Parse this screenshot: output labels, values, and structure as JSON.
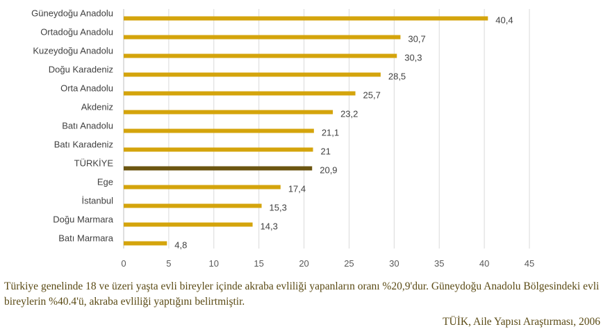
{
  "chart_data": {
    "type": "bar",
    "orientation": "horizontal",
    "categories": [
      "Güneydoğu Anadolu",
      "Ortadoğu Anadolu",
      "Kuzeydoğu Anadolu",
      "Doğu Karadeniz",
      "Orta Anadolu",
      "Akdeniz",
      "Batı Anadolu",
      "Batı Karadeniz",
      "TÜRKİYE",
      "Ege",
      "İstanbul",
      "Doğu Marmara",
      "Batı Marmara"
    ],
    "values": [
      40.4,
      30.7,
      30.3,
      28.5,
      25.7,
      23.2,
      21.1,
      21,
      20.9,
      17.4,
      15.3,
      14.3,
      4.8
    ],
    "value_labels": [
      "40,4",
      "30,7",
      "30,3",
      "28,5",
      "25,7",
      "23,2",
      "21,1",
      "21",
      "20,9",
      "17,4",
      "15,3",
      "14,3",
      "4,8"
    ],
    "highlight_category": "TÜRKİYE",
    "xlim": [
      0,
      45
    ],
    "xticks": [
      0,
      5,
      10,
      15,
      20,
      25,
      30,
      35,
      40,
      45
    ],
    "grid": "vertical",
    "colors": {
      "bar": "#D4A40C",
      "highlight": "#6B5510",
      "grid": "#D9D9D9"
    }
  },
  "caption": "Türkiye genelinde 18 ve üzeri yaşta evli bireyler içinde akraba evliliği yapanların oranı %20,9'dur. Güneydoğu Anadolu Bölgesindeki evli bireylerin %40.4'ü, akraba evliliği yaptığını belirtmiştir.",
  "source": "TÜİK, Aile Yapısı Araştırması, 2006"
}
